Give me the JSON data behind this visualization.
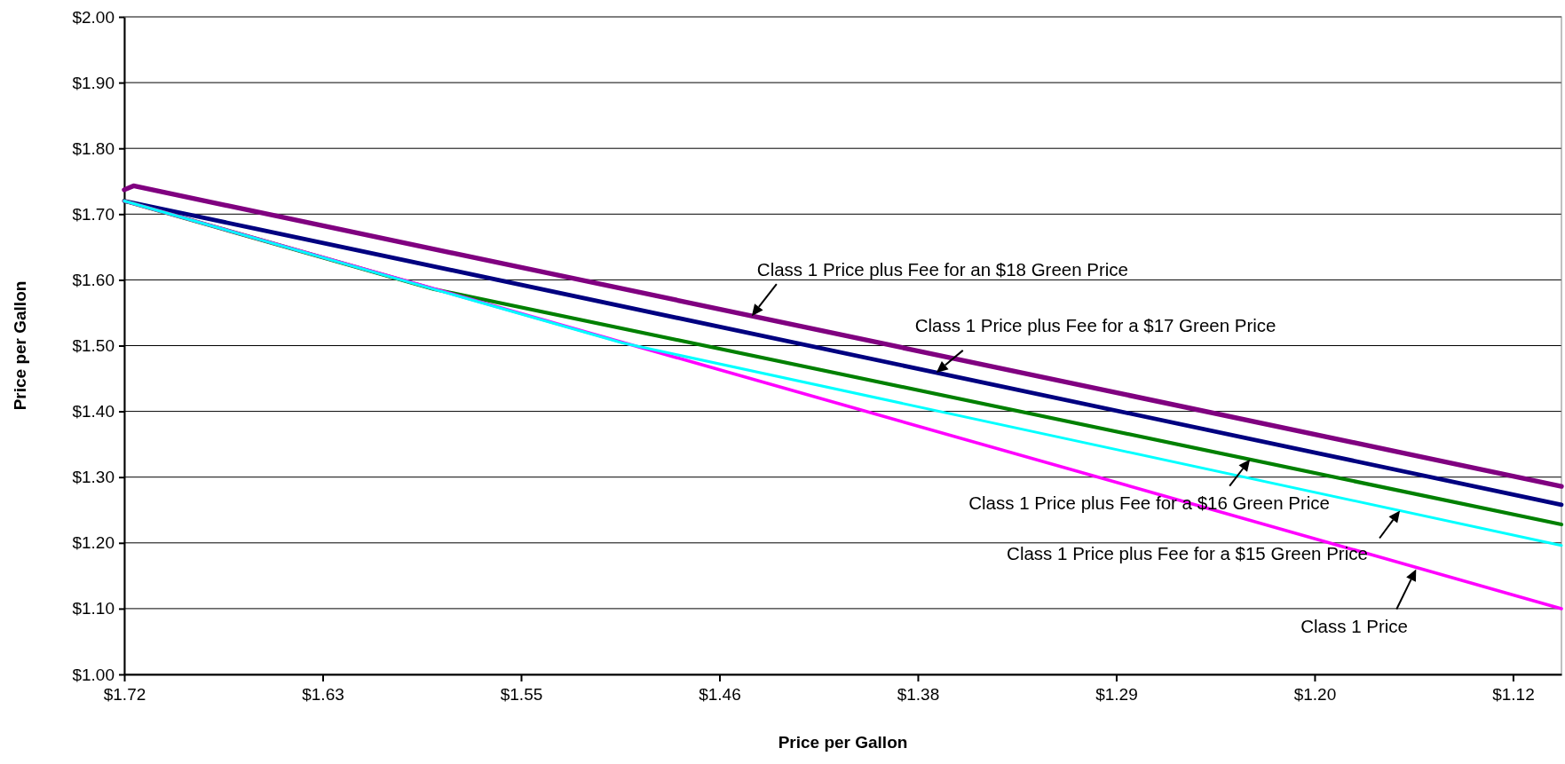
{
  "chart_data": {
    "type": "line",
    "xlabel": "Price per Gallon",
    "ylabel": "Price per Gallon",
    "xlim": [
      1.72,
      1.097
    ],
    "xticks": [
      {
        "value": 1.72,
        "label": "$1.72"
      },
      {
        "value": 1.634,
        "label": "$1.63"
      },
      {
        "value": 1.548,
        "label": "$1.55"
      },
      {
        "value": 1.462,
        "label": "$1.46"
      },
      {
        "value": 1.376,
        "label": "$1.38"
      },
      {
        "value": 1.29,
        "label": "$1.29"
      },
      {
        "value": 1.204,
        "label": "$1.20"
      },
      {
        "value": 1.118,
        "label": "$1.12"
      }
    ],
    "ylim": [
      1.0,
      2.0
    ],
    "yticks": [
      {
        "value": 1.0,
        "label": "$1.00"
      },
      {
        "value": 1.1,
        "label": "$1.10"
      },
      {
        "value": 1.2,
        "label": "$1.20"
      },
      {
        "value": 1.3,
        "label": "$1.30"
      },
      {
        "value": 1.4,
        "label": "$1.40"
      },
      {
        "value": 1.5,
        "label": "$1.50"
      },
      {
        "value": 1.6,
        "label": "$1.60"
      },
      {
        "value": 1.7,
        "label": "$1.70"
      },
      {
        "value": 1.8,
        "label": "$1.80"
      },
      {
        "value": 1.9,
        "label": "$1.90"
      },
      {
        "value": 2.0,
        "label": "$2.00"
      }
    ],
    "grid": "y",
    "marker": "none",
    "line_style": "solid",
    "series": [
      {
        "color": "#800080",
        "x": [
          1.72,
          1.716,
          1.097
        ],
        "values": [
          1.737,
          1.743,
          1.286
        ]
      },
      {
        "color": "#000080",
        "x": [
          1.72,
          1.097
        ],
        "values": [
          1.72,
          1.258
        ]
      },
      {
        "color": "#008000",
        "x": [
          1.72,
          1.586,
          1.097
        ],
        "values": [
          1.72,
          1.586,
          1.228
        ]
      },
      {
        "color": "#ff00ff",
        "x": [
          1.72,
          1.097
        ],
        "values": [
          1.72,
          1.1
        ]
      },
      {
        "color": "#00ffff",
        "x": [
          1.72,
          1.504,
          1.097
        ],
        "values": [
          1.72,
          1.504,
          1.196
        ]
      }
    ],
    "annotations": [
      {
        "text": "Class 1 Price plus Fee for an $18 Green Price",
        "x": 1.448,
        "y": 1.545
      },
      {
        "text": "Class 1 Price plus Fee for a $17 Green Price",
        "x": 1.368,
        "y": 1.459
      },
      {
        "text": "Class 1 Price plus Fee for a $16 Green Price",
        "x": 1.232,
        "y": 1.327
      },
      {
        "text": "Class 1 Price plus Fee for a $15 Green Price",
        "x": 1.167,
        "y": 1.249
      },
      {
        "text": "Class 1 Price",
        "x": 1.16,
        "y": 1.16
      }
    ]
  }
}
